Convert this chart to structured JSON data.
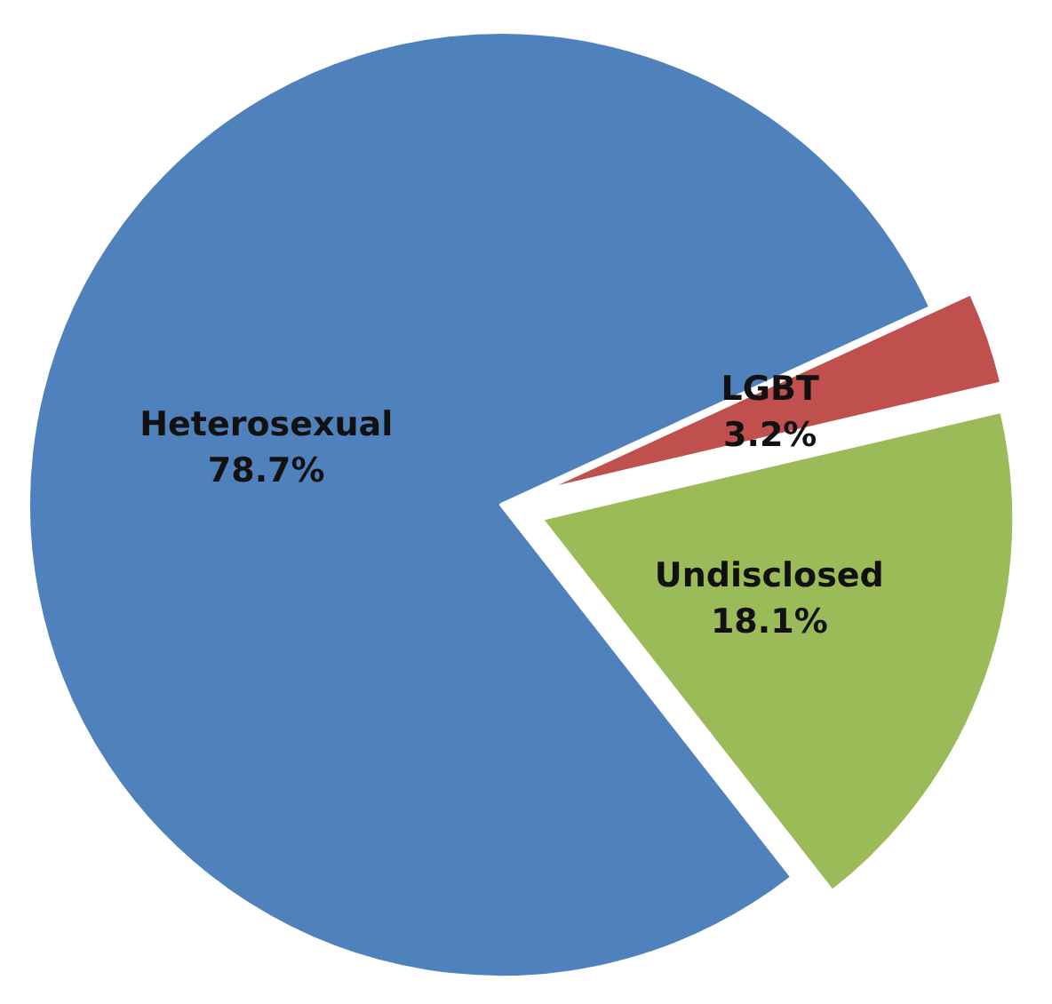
{
  "chart_data": {
    "type": "pie",
    "categories": [
      "Heterosexual",
      "LGBT",
      "Undisclosed"
    ],
    "values": [
      78.7,
      3.2,
      18.1
    ],
    "value_labels": [
      "78.7%",
      "3.2%",
      "18.1%"
    ],
    "colors": [
      "#4f81bd",
      "#c0504d",
      "#9bbb59"
    ],
    "legend": false
  }
}
